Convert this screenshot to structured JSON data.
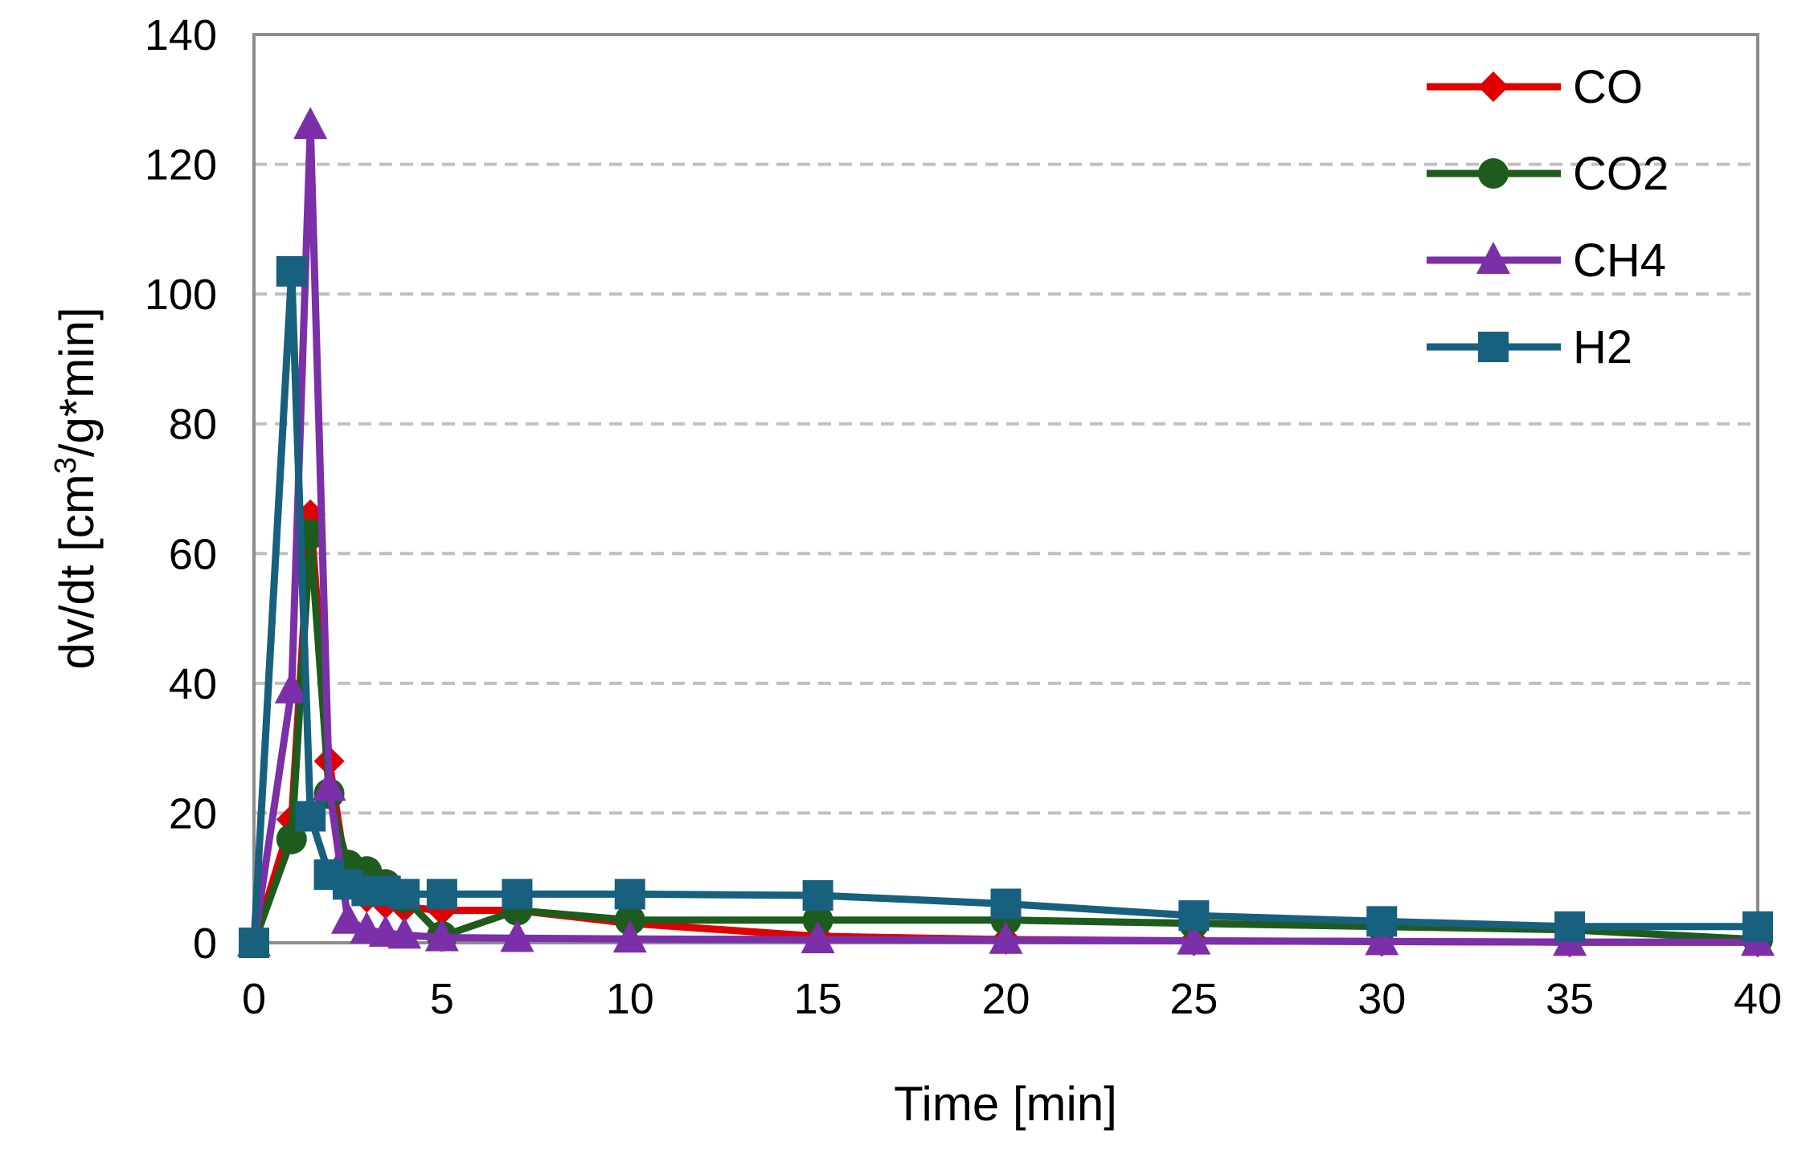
{
  "chart_data": {
    "type": "line",
    "title": "",
    "xlabel": "Time [min]",
    "ylabel_main": "dv/dt [cm",
    "ylabel_sup": "3",
    "ylabel_rest": "/g*min]",
    "xlim": [
      0,
      40
    ],
    "ylim": [
      0,
      140
    ],
    "x_ticks": [
      0,
      5,
      10,
      15,
      20,
      25,
      30,
      35,
      40
    ],
    "y_ticks": [
      0,
      20,
      40,
      60,
      80,
      100,
      120,
      140
    ],
    "grid": "horizontal dashed",
    "legend_position": "top-right",
    "series": [
      {
        "name": "CO",
        "color": "#e00000",
        "marker": "diamond",
        "x": [
          0,
          1,
          1.5,
          2,
          2.5,
          3,
          3.5,
          4,
          5,
          7,
          10,
          15,
          20,
          25,
          30,
          35,
          40
        ],
        "y": [
          0,
          19,
          66,
          28,
          9,
          7,
          6,
          5.5,
          5,
          5,
          3,
          1,
          0.5,
          0.3,
          0.2,
          0.1,
          0.1
        ]
      },
      {
        "name": "CO2",
        "color": "#1e5c1e",
        "marker": "circle",
        "x": [
          0,
          1,
          1.5,
          2,
          2.5,
          3,
          3.5,
          4,
          5,
          7,
          10,
          15,
          20,
          25,
          30,
          35,
          40
        ],
        "y": [
          0,
          16,
          63,
          23,
          12,
          11,
          9,
          7,
          1,
          5,
          3.5,
          3.5,
          3.5,
          3,
          2.5,
          2,
          0.5
        ]
      },
      {
        "name": "CH4",
        "color": "#7b2fa8",
        "marker": "triangle",
        "x": [
          0,
          1,
          1.5,
          2,
          2.5,
          3,
          3.5,
          4,
          5,
          7,
          10,
          15,
          20,
          25,
          30,
          35,
          40
        ],
        "y": [
          0,
          39,
          126,
          24,
          3.5,
          2,
          1.5,
          1.2,
          0.8,
          0.7,
          0.6,
          0.5,
          0.4,
          0.3,
          0.2,
          0.1,
          0.1
        ]
      },
      {
        "name": "H2",
        "color": "#17607e",
        "marker": "square",
        "x": [
          0,
          1,
          1.5,
          2,
          2.5,
          3,
          3.5,
          4,
          5,
          7,
          10,
          15,
          20,
          25,
          30,
          35,
          40
        ],
        "y": [
          0,
          103.5,
          19.5,
          10.5,
          9,
          8,
          8,
          7.5,
          7.5,
          7.5,
          7.5,
          7.3,
          6,
          4.2,
          3.3,
          2.5,
          2.5
        ]
      }
    ]
  }
}
